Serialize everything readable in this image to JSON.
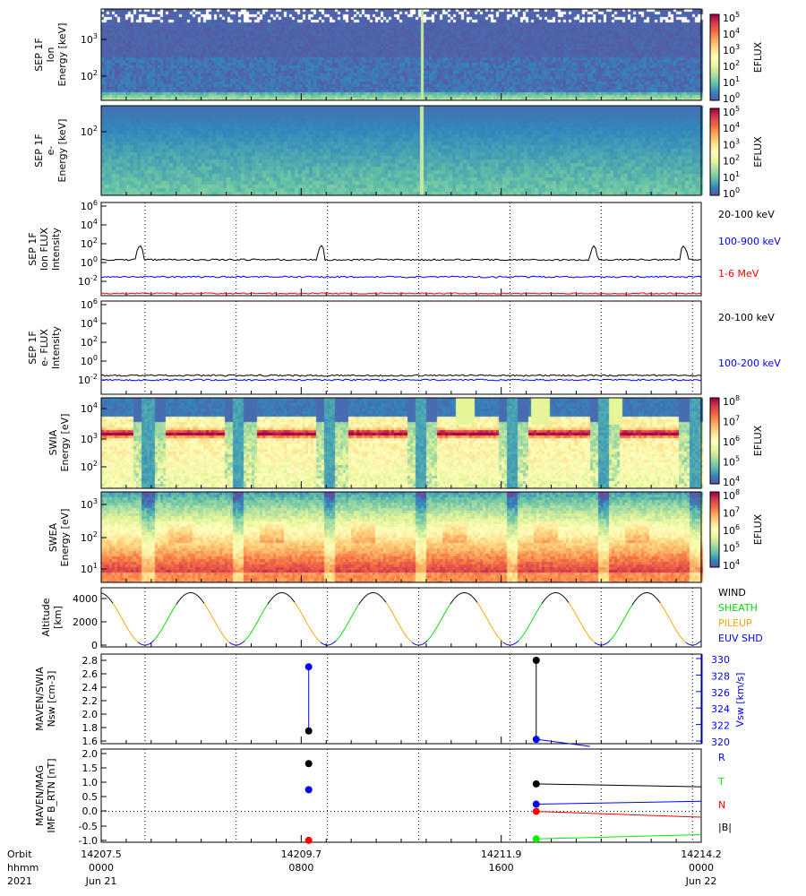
{
  "chart_data": [
    {
      "type": "heatmap",
      "title": "SEP 1F Ion Energy",
      "ylabel": [
        "SEP 1F",
        "Ion",
        "Energy [keV]"
      ],
      "yscale": "log",
      "yticks": [
        "10^3",
        "10^2"
      ],
      "cbar_label": "EFLUX",
      "cbar_ticks": [
        "10^5",
        "10^4",
        "10^3",
        "10^2",
        "10^1",
        "10^0"
      ],
      "zlim": [
        1,
        100000
      ]
    },
    {
      "type": "heatmap",
      "title": "SEP 1F e- Energy",
      "ylabel": [
        "SEP 1F",
        "e-",
        "Energy [keV]"
      ],
      "yscale": "log",
      "yticks": [
        "10^2"
      ],
      "cbar_label": "EFLUX",
      "cbar_ticks": [
        "10^5",
        "10^4",
        "10^3",
        "10^2",
        "10^1",
        "10^0"
      ],
      "zlim": [
        1,
        100000
      ]
    },
    {
      "type": "line",
      "title": "SEP 1F Ion FLUX Intensity",
      "ylabel": [
        "SEP 1F",
        "Ion FLUX",
        "Intensity"
      ],
      "yscale": "log",
      "yticks": [
        "10^6",
        "10^4",
        "10^2",
        "10^0",
        "10^-2"
      ],
      "ylim": [
        0.0003,
        1000000
      ],
      "series": [
        {
          "name": "20-100 keV",
          "color": "#000000",
          "typical": 2,
          "spikes_hours": [
            1.55,
            8.8,
            19.7,
            23.3
          ],
          "spike_value": 30
        },
        {
          "name": "100-900 keV",
          "color": "#0000ff",
          "typical": 0.03
        },
        {
          "name": "1-6 MeV",
          "color": "#ff0000",
          "typical": 0.0005
        }
      ]
    },
    {
      "type": "line",
      "title": "SEP 1F e- FLUX Intensity",
      "ylabel": [
        "SEP 1F",
        "e- FLUX",
        "Intensity"
      ],
      "yscale": "log",
      "yticks": [
        "10^6",
        "10^4",
        "10^2",
        "10^0",
        "10^-2"
      ],
      "ylim": [
        0.0003,
        1000000
      ],
      "series": [
        {
          "name": "20-100 keV",
          "color": "#000000",
          "typical": 0.03
        },
        {
          "name": "100-200 keV",
          "color": "#0000ff",
          "typical": 0.01
        }
      ]
    },
    {
      "type": "heatmap",
      "title": "SWIA Energy",
      "ylabel": [
        "SWIA",
        "Energy [eV]"
      ],
      "yscale": "log",
      "yticks": [
        "10^4",
        "10^3",
        "10^2"
      ],
      "cbar_label": "EFLUX",
      "cbar_ticks": [
        "10^8",
        "10^7",
        "10^6",
        "10^5",
        "10^4"
      ],
      "zlim": [
        10000,
        100000000
      ]
    },
    {
      "type": "heatmap",
      "title": "SWEA Energy",
      "ylabel": [
        "SWEA",
        "Energy [eV]"
      ],
      "yscale": "log",
      "yticks": [
        "10^3",
        "10^2",
        "10^1"
      ],
      "cbar_label": "EFLUX",
      "cbar_ticks": [
        "10^8",
        "10^7",
        "10^6",
        "10^5",
        "10^4"
      ],
      "zlim": [
        10000,
        100000000
      ]
    },
    {
      "type": "line",
      "title": "Altitude",
      "ylabel": [
        "Altitude",
        "[km]"
      ],
      "yticks": [
        "4000",
        "2000",
        "0"
      ],
      "ylim": [
        -300,
        4700
      ],
      "orbit_period_hours": 3.65,
      "max_altitude_km": 4500,
      "legend": [
        {
          "name": "WIND",
          "color": "#000000"
        },
        {
          "name": "SHEATH",
          "color": "#00dd00"
        },
        {
          "name": "PILEUP",
          "color": "#ffa500"
        },
        {
          "name": "EUV SHD",
          "color": "#0000ff"
        }
      ]
    },
    {
      "type": "scatter",
      "title": "MAVEN/SWIA Nsw",
      "ylabel": [
        "MAVEN/SWIA",
        "Nsw [cm-3]"
      ],
      "yticks": [
        "2.8",
        "2.6",
        "2.4",
        "2.2",
        "2.0",
        "1.8",
        "1.6"
      ],
      "ylim": [
        1.55,
        2.85
      ],
      "y2label": "Vsw [km/s]",
      "y2ticks": [
        "330",
        "328",
        "326",
        "324",
        "322",
        "320"
      ],
      "y2lim": [
        319.7,
        330.3
      ],
      "series": [
        {
          "name": "Nsw",
          "color": "#000000",
          "x_hours": [
            8.3,
            17.4
          ],
          "y": [
            1.75,
            2.8
          ]
        },
        {
          "name": "Vsw",
          "color": "#0000ff",
          "x_hours": [
            8.3,
            17.4
          ],
          "y": [
            329,
            320.2
          ]
        }
      ]
    },
    {
      "type": "scatter",
      "title": "MAVEN/MAG IMF B_RTN",
      "ylabel": [
        "MAVEN/MAG",
        "IMF B_RTN [nT]"
      ],
      "yticks": [
        "2.0",
        "1.5",
        "1.0",
        "0.5",
        "0.0",
        "-0.5",
        "-1.0"
      ],
      "ylim": [
        -1.05,
        2.1
      ],
      "series": [
        {
          "name": "R",
          "color": "#0000ff",
          "x_hours": [
            8.3,
            17.4
          ],
          "y": [
            0.75,
            0.25
          ]
        },
        {
          "name": "T",
          "color": "#00ee00",
          "x_hours": [
            8.3,
            17.4
          ],
          "y": [
            null,
            -0.95
          ]
        },
        {
          "name": "N",
          "color": "#ff0000",
          "x_hours": [
            8.3,
            17.4
          ],
          "y": [
            -1.0,
            0.0
          ]
        },
        {
          "name": "|B|",
          "color": "#000000",
          "x_hours": [
            8.3,
            17.4
          ],
          "y": [
            1.65,
            0.95
          ]
        }
      ]
    }
  ],
  "xaxis": {
    "row_labels": [
      "Orbit",
      "hhmm",
      "2021"
    ],
    "ticks": [
      {
        "orbit": "14207.5",
        "hhmm": "0000",
        "date": "Jun 21",
        "hour": 0
      },
      {
        "orbit": "14209.7",
        "hhmm": "0800",
        "date": "",
        "hour": 8
      },
      {
        "orbit": "14211.9",
        "hhmm": "1600",
        "date": "",
        "hour": 16
      },
      {
        "orbit": "14214.2",
        "hhmm": "0000",
        "date": "Jun 22",
        "hour": 24
      }
    ]
  },
  "periapsis_hours": [
    1.75,
    5.4,
    9.05,
    12.7,
    16.35,
    20.0,
    23.65
  ]
}
